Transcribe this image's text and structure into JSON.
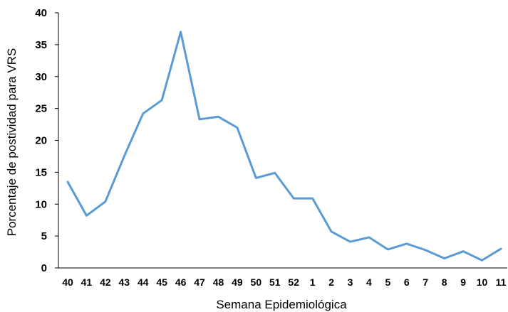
{
  "chart_data": {
    "type": "line",
    "categories": [
      "40",
      "41",
      "42",
      "43",
      "44",
      "45",
      "46",
      "47",
      "48",
      "49",
      "50",
      "51",
      "52",
      "1",
      "2",
      "3",
      "4",
      "5",
      "6",
      "7",
      "8",
      "9",
      "10",
      "11"
    ],
    "series": [
      {
        "values": [
          13.5,
          8.2,
          10.4,
          17.5,
          24.2,
          26.3,
          37.0,
          23.3,
          23.7,
          22.0,
          14.1,
          14.9,
          10.9,
          10.9,
          5.7,
          4.1,
          4.8,
          2.9,
          3.8,
          2.8,
          1.5,
          2.6,
          1.2,
          3.0
        ],
        "color": "#5b9bd5"
      }
    ],
    "xlabel": "Semana Epidemiológica",
    "ylabel": "Porcentaje de postividad para VRS",
    "ylim": [
      0,
      40
    ],
    "yticks": [
      0,
      5,
      10,
      15,
      20,
      25,
      30,
      35,
      40
    ],
    "grid": false,
    "legend": "none"
  }
}
